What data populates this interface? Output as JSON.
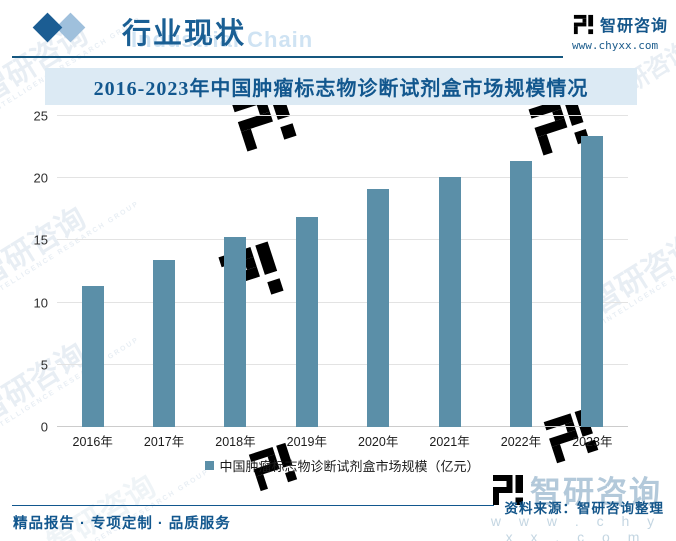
{
  "header": {
    "section_title": "行业现状",
    "background_watermark": "Industrial Chain",
    "brand_name": "智研咨询",
    "brand_url": "www.chyxx.com"
  },
  "chart_data": {
    "type": "bar",
    "title": "2016-2023年中国肿瘤标志物诊断试剂盒市场规模情况",
    "categories": [
      "2016年",
      "2017年",
      "2018年",
      "2019年",
      "2020年",
      "2021年",
      "2022年",
      "2023年"
    ],
    "series": [
      {
        "name": "中国肿瘤标志物诊断试剂盒市场规模（亿元）",
        "values": [
          11.3,
          13.4,
          15.3,
          16.9,
          19.1,
          20.1,
          21.4,
          23.4
        ]
      }
    ],
    "xlabel": "",
    "ylabel": "",
    "ylim": [
      0,
      25
    ],
    "yticks": [
      0,
      5,
      10,
      15,
      20,
      25
    ],
    "grid": true,
    "legend_position": "bottom",
    "bar_color": "#5b8fa8"
  },
  "footer": {
    "source": "资料来源：智研咨询整理",
    "slogan": "精品报告 · 专项定制 · 品质服务",
    "watermark_brand": "智研咨询",
    "watermark_url": "w w w . c h y x x . c o m"
  },
  "watermarks": {
    "diagonal_text": "智研咨询",
    "diagonal_subtext": "INTELLIGENCE RESEARCH GROUP"
  },
  "colors": {
    "brand_blue": "#14568a",
    "heading_blue": "#1a5f94",
    "bar_steel_blue": "#5b8fa8",
    "title_band_bg": "#dceaf4",
    "gridline": "#e3e3e3"
  }
}
